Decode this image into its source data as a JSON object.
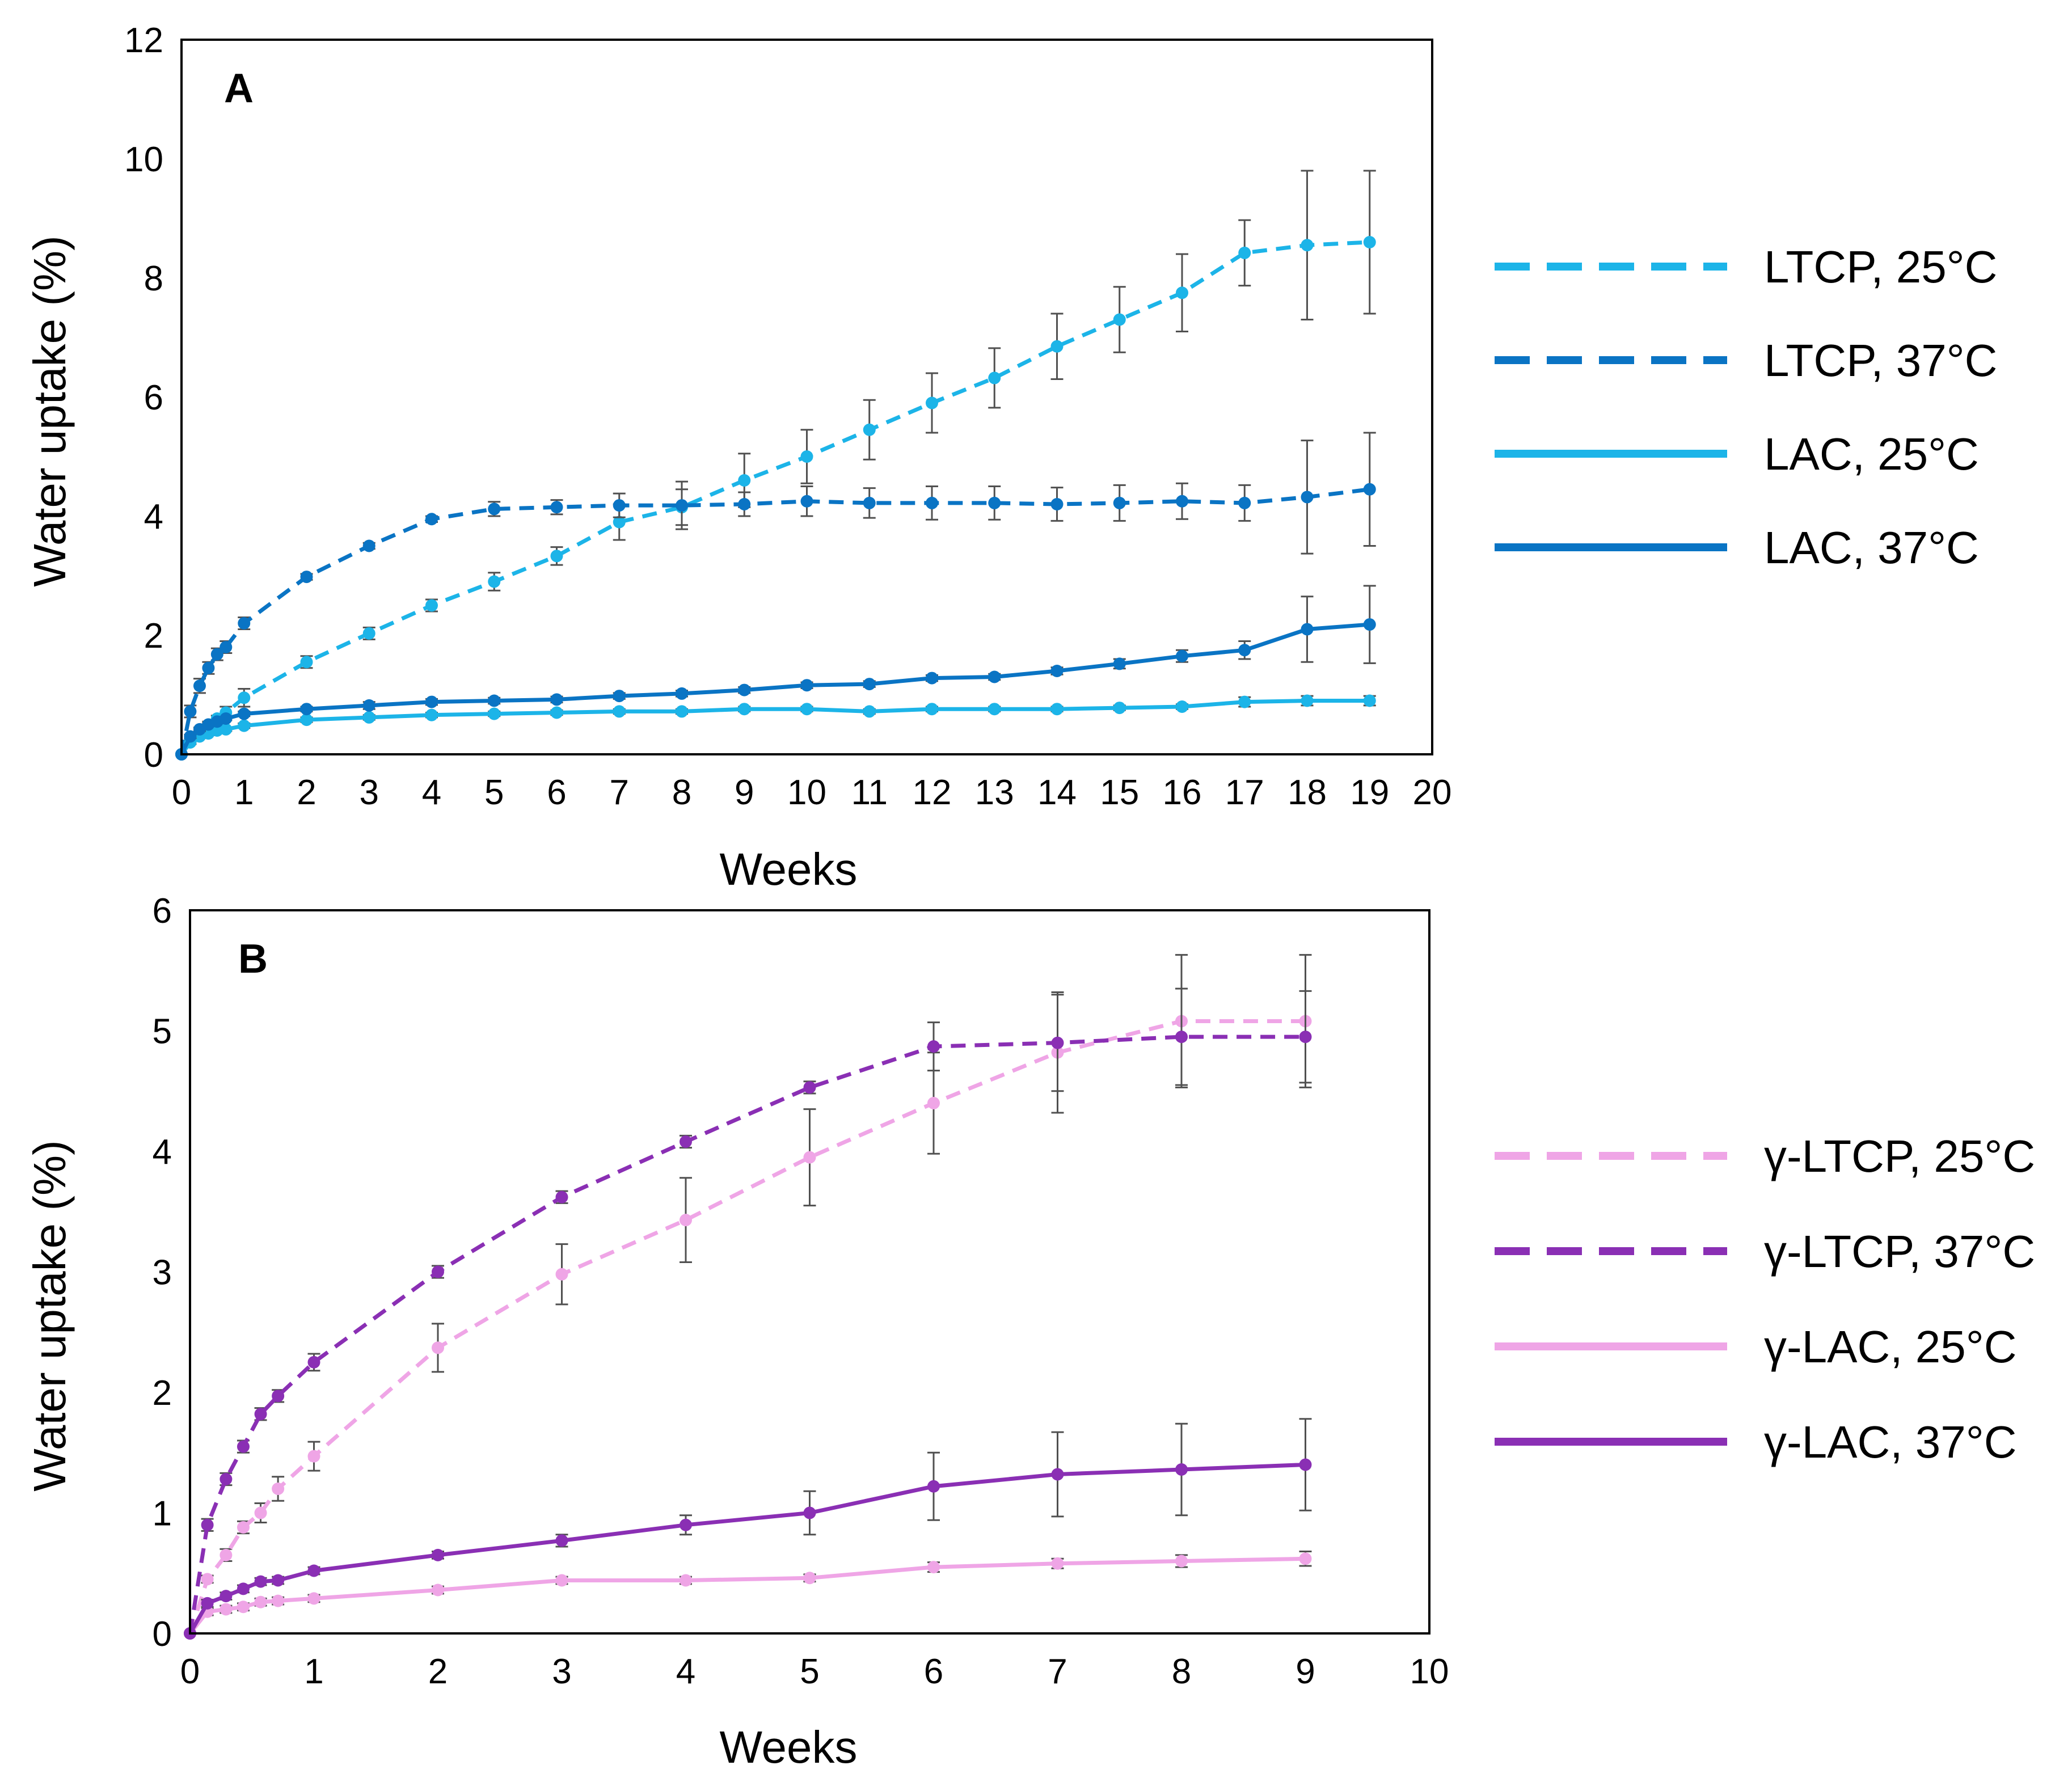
{
  "chart_data": [
    {
      "panel": "A",
      "type": "line",
      "xlabel": "Weeks",
      "ylabel": "Water uptake (%)",
      "xlim": [
        0,
        20
      ],
      "ylim": [
        0,
        12
      ],
      "xticks": [
        0,
        1,
        2,
        3,
        4,
        5,
        6,
        7,
        8,
        9,
        10,
        11,
        12,
        13,
        14,
        15,
        16,
        17,
        18,
        19,
        20
      ],
      "yticks": [
        0,
        2,
        4,
        6,
        8,
        10,
        12
      ],
      "grid": false,
      "legend_position": "right",
      "series": [
        {
          "name": "LTCP, 25°C",
          "color": "#1cb4e8",
          "dashed": true,
          "x": [
            0,
            0.14,
            0.29,
            0.43,
            0.57,
            0.71,
            1,
            2,
            3,
            4,
            5,
            6,
            7,
            8,
            9,
            10,
            11,
            12,
            13,
            14,
            15,
            16,
            17,
            18,
            19
          ],
          "y": [
            0,
            0.25,
            0.38,
            0.5,
            0.6,
            0.7,
            0.95,
            1.55,
            2.03,
            2.5,
            2.9,
            3.33,
            3.9,
            4.15,
            4.6,
            5.0,
            5.45,
            5.9,
            6.32,
            6.85,
            7.3,
            7.75,
            8.42,
            8.55,
            8.6
          ],
          "err": [
            0,
            0.05,
            0.05,
            0.05,
            0.05,
            0.1,
            0.15,
            0.1,
            0.1,
            0.1,
            0.15,
            0.15,
            0.3,
            0.3,
            0.45,
            0.45,
            0.5,
            0.5,
            0.5,
            0.55,
            0.55,
            0.65,
            0.55,
            1.25,
            1.2
          ]
        },
        {
          "name": "LTCP, 37°C",
          "color": "#0a74c4",
          "dashed": true,
          "x": [
            0,
            0.14,
            0.29,
            0.43,
            0.57,
            0.71,
            1,
            2,
            3,
            4,
            5,
            6,
            7,
            8,
            9,
            10,
            11,
            12,
            13,
            14,
            15,
            16,
            17,
            18,
            19
          ],
          "y": [
            0,
            0.72,
            1.15,
            1.45,
            1.68,
            1.8,
            2.2,
            2.98,
            3.5,
            3.95,
            4.12,
            4.15,
            4.18,
            4.18,
            4.2,
            4.25,
            4.22,
            4.22,
            4.22,
            4.2,
            4.22,
            4.25,
            4.22,
            4.32,
            4.45
          ],
          "err": [
            0,
            0.1,
            0.12,
            0.1,
            0.1,
            0.1,
            0.1,
            0.05,
            0.05,
            0.05,
            0.12,
            0.12,
            0.2,
            0.4,
            0.2,
            0.25,
            0.25,
            0.28,
            0.28,
            0.28,
            0.3,
            0.3,
            0.3,
            0.95,
            0.95
          ]
        },
        {
          "name": "LAC, 25°C",
          "color": "#1cb4e8",
          "dashed": false,
          "x": [
            0,
            0.14,
            0.29,
            0.43,
            0.57,
            0.71,
            1,
            2,
            3,
            4,
            5,
            6,
            7,
            8,
            9,
            10,
            11,
            12,
            13,
            14,
            15,
            16,
            17,
            18,
            19
          ],
          "y": [
            0,
            0.2,
            0.3,
            0.35,
            0.4,
            0.42,
            0.48,
            0.58,
            0.62,
            0.66,
            0.68,
            0.7,
            0.72,
            0.72,
            0.76,
            0.76,
            0.72,
            0.76,
            0.76,
            0.76,
            0.78,
            0.8,
            0.88,
            0.9,
            0.9
          ],
          "err": [
            0,
            0.03,
            0.03,
            0.03,
            0.03,
            0.03,
            0.04,
            0.04,
            0.04,
            0.04,
            0.04,
            0.04,
            0.04,
            0.04,
            0.04,
            0.04,
            0.04,
            0.04,
            0.04,
            0.04,
            0.04,
            0.04,
            0.08,
            0.08,
            0.08
          ]
        },
        {
          "name": "LAC, 37°C",
          "color": "#0a74c4",
          "dashed": false,
          "x": [
            0,
            0.14,
            0.29,
            0.43,
            0.57,
            0.71,
            1,
            2,
            3,
            4,
            5,
            6,
            7,
            8,
            9,
            10,
            11,
            12,
            13,
            14,
            15,
            16,
            17,
            18,
            19
          ],
          "y": [
            0,
            0.3,
            0.42,
            0.5,
            0.55,
            0.6,
            0.68,
            0.76,
            0.82,
            0.88,
            0.9,
            0.92,
            0.98,
            1.02,
            1.08,
            1.16,
            1.18,
            1.28,
            1.3,
            1.4,
            1.52,
            1.65,
            1.75,
            2.1,
            2.18
          ],
          "err": [
            0,
            0.03,
            0.03,
            0.03,
            0.03,
            0.03,
            0.04,
            0.04,
            0.06,
            0.05,
            0.05,
            0.05,
            0.05,
            0.05,
            0.05,
            0.05,
            0.05,
            0.05,
            0.05,
            0.06,
            0.08,
            0.1,
            0.15,
            0.55,
            0.65
          ]
        }
      ]
    },
    {
      "panel": "B",
      "type": "line",
      "xlabel": "Weeks",
      "ylabel": "Water uptake (%)",
      "xlim": [
        0,
        10
      ],
      "ylim": [
        0,
        6
      ],
      "xticks": [
        0,
        1,
        2,
        3,
        4,
        5,
        6,
        7,
        8,
        9,
        10
      ],
      "yticks": [
        0,
        1,
        2,
        3,
        4,
        5,
        6
      ],
      "grid": false,
      "legend_position": "right",
      "series": [
        {
          "name": "γ-LTCP, 25°C",
          "color": "#efa5e6",
          "dashed": true,
          "x": [
            0,
            0.14,
            0.29,
            0.43,
            0.57,
            0.71,
            1,
            2,
            3,
            4,
            5,
            6,
            7,
            8,
            9
          ],
          "y": [
            0,
            0.45,
            0.65,
            0.88,
            1.0,
            1.2,
            1.47,
            2.37,
            2.98,
            3.43,
            3.95,
            4.4,
            4.82,
            5.08,
            5.08
          ],
          "err": [
            0,
            0.03,
            0.05,
            0.05,
            0.08,
            0.1,
            0.12,
            0.2,
            0.25,
            0.35,
            0.4,
            0.42,
            0.5,
            0.55,
            0.55
          ]
        },
        {
          "name": "γ-LTCP, 37°C",
          "color": "#8a2fb4",
          "dashed": true,
          "x": [
            0,
            0.14,
            0.29,
            0.43,
            0.57,
            0.71,
            1,
            2,
            3,
            4,
            5,
            6,
            7,
            8,
            9
          ],
          "y": [
            0,
            0.9,
            1.28,
            1.55,
            1.82,
            1.97,
            2.25,
            3.0,
            3.62,
            4.08,
            4.53,
            4.87,
            4.9,
            4.95,
            4.95
          ],
          "err": [
            0,
            0.05,
            0.05,
            0.05,
            0.05,
            0.05,
            0.07,
            0.05,
            0.05,
            0.05,
            0.05,
            0.2,
            0.4,
            0.4,
            0.38
          ]
        },
        {
          "name": "γ-LAC, 25°C",
          "color": "#efa5e6",
          "dashed": false,
          "x": [
            0,
            0.14,
            0.29,
            0.43,
            0.57,
            0.71,
            1,
            2,
            3,
            4,
            5,
            6,
            7,
            8,
            9
          ],
          "y": [
            0,
            0.18,
            0.2,
            0.22,
            0.26,
            0.27,
            0.29,
            0.36,
            0.44,
            0.44,
            0.46,
            0.55,
            0.58,
            0.6,
            0.62
          ],
          "err": [
            0,
            0.03,
            0.03,
            0.03,
            0.03,
            0.03,
            0.03,
            0.03,
            0.03,
            0.03,
            0.03,
            0.04,
            0.04,
            0.05,
            0.06
          ]
        },
        {
          "name": "γ-LAC, 37°C",
          "color": "#8a2fb4",
          "dashed": false,
          "x": [
            0,
            0.14,
            0.29,
            0.43,
            0.57,
            0.71,
            1,
            2,
            3,
            4,
            5,
            6,
            7,
            8,
            9
          ],
          "y": [
            0,
            0.25,
            0.31,
            0.37,
            0.43,
            0.44,
            0.52,
            0.65,
            0.77,
            0.9,
            1.0,
            1.22,
            1.32,
            1.36,
            1.4
          ],
          "err": [
            0,
            0.03,
            0.03,
            0.03,
            0.03,
            0.03,
            0.03,
            0.03,
            0.05,
            0.08,
            0.18,
            0.28,
            0.35,
            0.38,
            0.38
          ]
        }
      ]
    }
  ]
}
